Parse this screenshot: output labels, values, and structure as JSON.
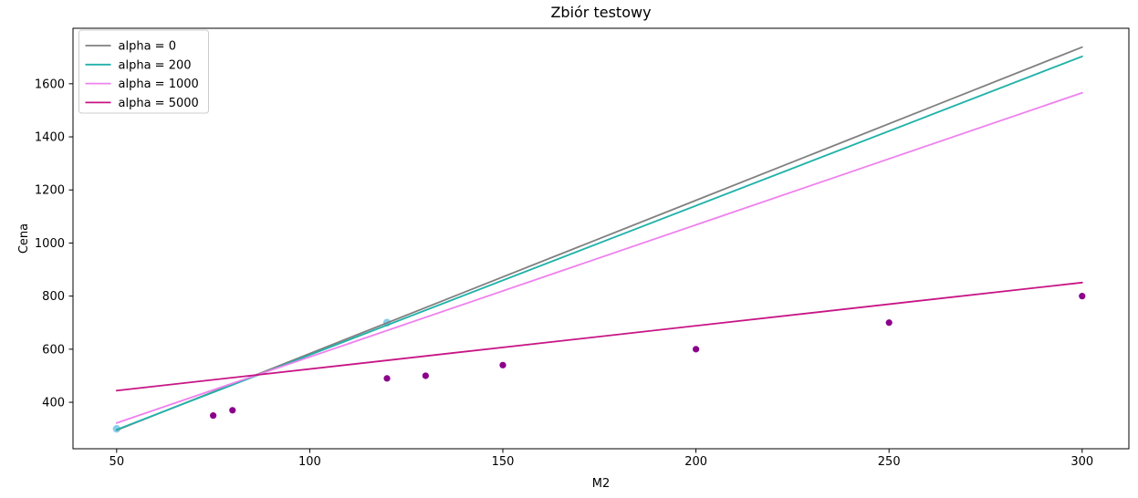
{
  "chart_data": {
    "type": "line+scatter",
    "title": "Zbiór testowy",
    "xlabel": "M2",
    "ylabel": "Cena",
    "xlim": [
      38.7,
      312.1
    ],
    "ylim": [
      225,
      1809
    ],
    "xticks": [
      50,
      100,
      150,
      200,
      250,
      300
    ],
    "yticks": [
      400,
      600,
      800,
      1000,
      1200,
      1400,
      1600
    ],
    "grid": false,
    "legend_position": "upper-left",
    "series": [
      {
        "name": "alpha = 0",
        "type": "line",
        "color": "#808080",
        "x": [
          50,
          300
        ],
        "y": [
          295,
          1738
        ]
      },
      {
        "name": "alpha = 200",
        "type": "line",
        "color": "#20B2AA",
        "x": [
          50,
          300
        ],
        "y": [
          297,
          1703
        ]
      },
      {
        "name": "alpha = 1000",
        "type": "line",
        "color": "#EE82EE",
        "x": [
          50,
          300
        ],
        "y": [
          322,
          1566
        ]
      },
      {
        "name": "alpha = 5000",
        "type": "line",
        "color": "#C71585",
        "x": [
          50,
          300
        ],
        "y": [
          444,
          851
        ]
      }
    ],
    "scatter": [
      {
        "name": "highlight-points",
        "color": "#87CEEB",
        "radius": 4.2,
        "points": [
          [
            50,
            300
          ],
          [
            120,
            700
          ]
        ]
      },
      {
        "name": "test-points",
        "color": "#8B008B",
        "radius": 3.6,
        "points": [
          [
            75,
            350
          ],
          [
            80,
            370
          ],
          [
            120,
            490
          ],
          [
            130,
            500
          ],
          [
            150,
            540
          ],
          [
            200,
            600
          ],
          [
            250,
            700
          ],
          [
            300,
            800
          ]
        ]
      }
    ],
    "legend": [
      {
        "label": "alpha = 0",
        "color": "#808080"
      },
      {
        "label": "alpha = 200",
        "color": "#20B2AA"
      },
      {
        "label": "alpha = 1000",
        "color": "#EE82EE"
      },
      {
        "label": "alpha = 5000",
        "color": "#C71585"
      }
    ]
  }
}
